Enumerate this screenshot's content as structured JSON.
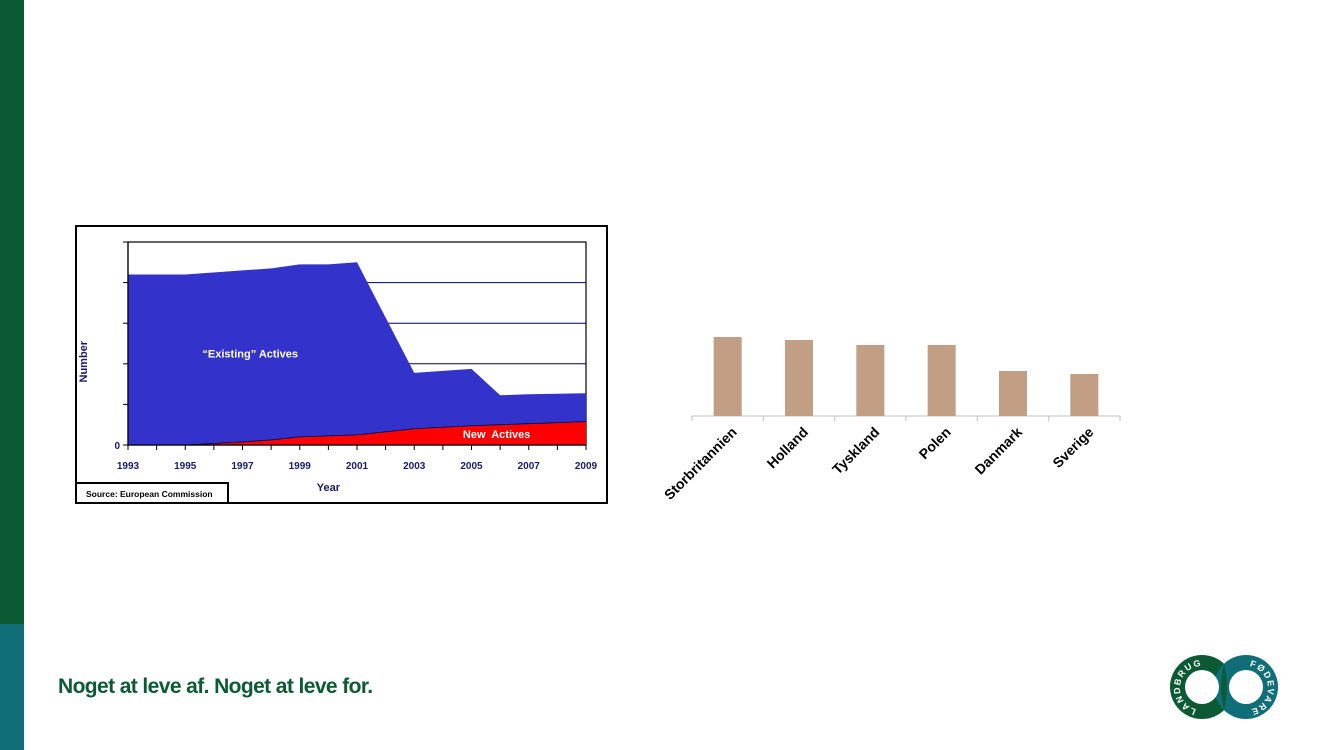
{
  "footer": {
    "tagline": "Noget at leve af. Noget at leve for.",
    "logo_text_left": "LANDBRUG",
    "logo_text_right": "FØDEVARER"
  },
  "colors": {
    "sidebar_green": "#0b5a33",
    "sidebar_teal": "#0f6e78",
    "existing_actives": "#3333cc",
    "new_actives": "#ff0000",
    "bars": "#c19e84",
    "axis_label_navy": "#1a1a6e"
  },
  "chart_data": [
    {
      "type": "area",
      "stacked": false,
      "x": [
        1993,
        1995,
        1997,
        1998,
        1999,
        2000,
        2001,
        2003,
        2005,
        2006,
        2007,
        2009
      ],
      "series": [
        {
          "name": "“Existing” Actives",
          "values": [
            840,
            840,
            860,
            870,
            890,
            890,
            900,
            355,
            375,
            245,
            250,
            255
          ]
        },
        {
          "name": "New  Actives",
          "values": [
            0,
            0,
            15,
            25,
            40,
            45,
            50,
            80,
            95,
            100,
            105,
            115
          ]
        }
      ],
      "xticks": [
        "1993",
        "1995",
        "1997",
        "1999",
        "2001",
        "2003",
        "2005",
        "2007",
        "2009"
      ],
      "yticks": [
        "0"
      ],
      "xlabel": "Year",
      "ylabel": "Number",
      "ylim": [
        0,
        1000
      ],
      "grid": "horizontal",
      "source": "Source: European Commission"
    },
    {
      "type": "bar",
      "categories": [
        "Storbritannien",
        "Holland",
        "Tyskland",
        "Polen",
        "Danmark",
        "Sverige"
      ],
      "values": [
        79,
        76,
        71,
        71,
        45,
        42
      ],
      "ylim": [
        0,
        100
      ]
    }
  ]
}
